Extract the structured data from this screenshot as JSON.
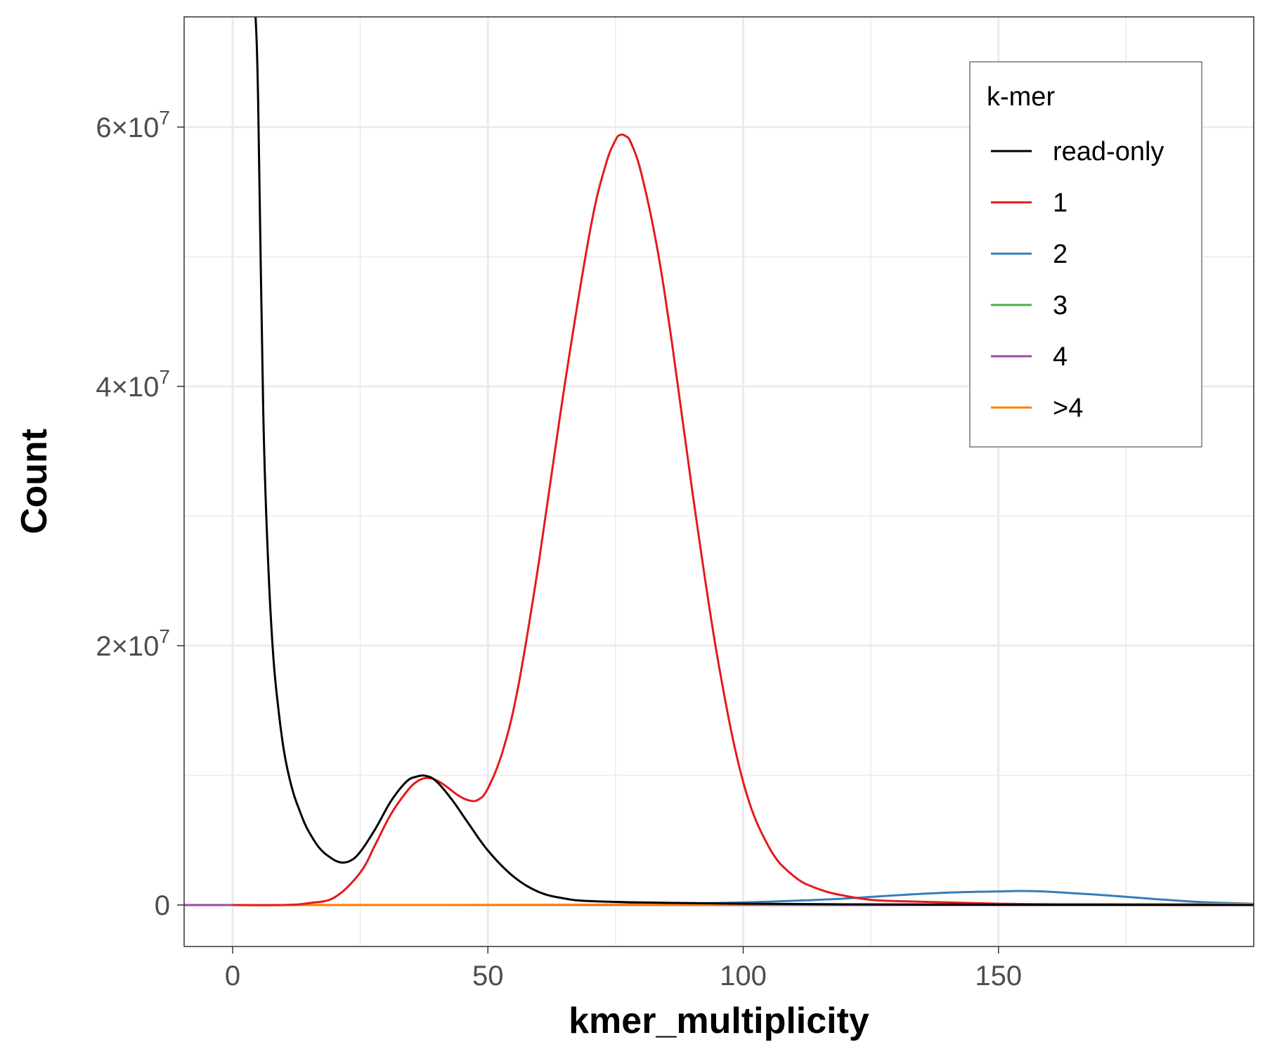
{
  "chart_data": {
    "type": "line",
    "xlabel": "kmer_multiplicity",
    "ylabel": "Count",
    "xlim": [
      -9.5,
      200
    ],
    "ylim": [
      -3200000,
      68500000
    ],
    "x_ticks": [
      0,
      50,
      100,
      150
    ],
    "y_ticks": [
      {
        "value": 0,
        "mantissa": "0",
        "times": "",
        "base": "",
        "exp": ""
      },
      {
        "value": 20000000,
        "mantissa": "2",
        "times": "×",
        "base": "10",
        "exp": "7"
      },
      {
        "value": 40000000,
        "mantissa": "4",
        "times": "×",
        "base": "10",
        "exp": "7"
      },
      {
        "value": 60000000,
        "mantissa": "6",
        "times": "×",
        "base": "10",
        "exp": "7"
      }
    ],
    "grid": true,
    "legend": {
      "title": "k-mer",
      "position": "top-right",
      "entries": [
        "read-only",
        "1",
        "2",
        "3",
        "4",
        ">4"
      ]
    },
    "colors": {
      "read-only": "#000000",
      "1": "#e41a1c",
      "2": "#377eb8",
      "3": "#4daf4a",
      "4": "#984ea3",
      ">4": "#ff7f00"
    },
    "series": [
      {
        "name": "read-only",
        "x": [
          4.5,
          5,
          6,
          7,
          8,
          9,
          10,
          11,
          12,
          13,
          14,
          15,
          17,
          19,
          21,
          23,
          25,
          28,
          31,
          34,
          36,
          38,
          40,
          43,
          46,
          50,
          55,
          60,
          65,
          70,
          80,
          90,
          100,
          120,
          150,
          200
        ],
        "y": [
          68500000,
          62000000,
          38000000,
          26000000,
          19000000,
          15000000,
          12000000,
          10000000,
          8500000,
          7400000,
          6400000,
          5600000,
          4400000,
          3700000,
          3300000,
          3400000,
          4100000,
          5900000,
          8000000,
          9500000,
          9900000,
          9950000,
          9500000,
          8100000,
          6400000,
          4200000,
          2200000,
          1000000,
          500000,
          300000,
          200000,
          150000,
          100000,
          50000,
          20000,
          0
        ]
      },
      {
        "name": "1",
        "x": [
          0,
          10,
          15,
          20,
          25,
          28,
          31,
          34,
          36,
          38,
          40,
          42,
          44,
          46,
          48,
          50,
          53,
          56,
          60,
          65,
          70,
          73,
          75,
          76,
          77,
          78,
          80,
          83,
          86,
          90,
          95,
          100,
          105,
          110,
          115,
          120,
          125,
          130,
          140,
          150,
          160,
          170,
          180,
          190,
          200
        ],
        "y": [
          0,
          0,
          150000,
          600000,
          2500000,
          4700000,
          7000000,
          8700000,
          9500000,
          9800000,
          9600000,
          9100000,
          8500000,
          8100000,
          8100000,
          9000000,
          12000000,
          17000000,
          26500000,
          40000000,
          52000000,
          57000000,
          59000000,
          59400000,
          59300000,
          58800000,
          56500000,
          51000000,
          43500000,
          32000000,
          19000000,
          9500000,
          4500000,
          2200000,
          1200000,
          700000,
          400000,
          300000,
          200000,
          100000,
          50000,
          30000,
          20000,
          10000,
          0
        ]
      },
      {
        "name": "2",
        "x": [
          -1,
          1,
          1.5,
          10,
          50,
          70,
          80,
          90,
          100,
          110,
          120,
          130,
          140,
          150,
          155,
          160,
          170,
          180,
          190,
          200
        ],
        "y": [
          0,
          0,
          0,
          0,
          0,
          20000,
          60000,
          120000,
          200000,
          330000,
          500000,
          750000,
          950000,
          1050000,
          1080000,
          1020000,
          780000,
          480000,
          220000,
          100000
        ]
      },
      {
        "name": "3",
        "x": [
          0,
          200
        ],
        "y": [
          0,
          0
        ]
      },
      {
        "name": "4",
        "x": [
          -1,
          1,
          200
        ],
        "y": [
          0,
          0,
          0
        ]
      },
      {
        "name": ">4",
        "x": [
          1,
          50,
          100,
          150,
          200
        ],
        "y": [
          0,
          10000,
          30000,
          60000,
          80000
        ]
      }
    ]
  }
}
